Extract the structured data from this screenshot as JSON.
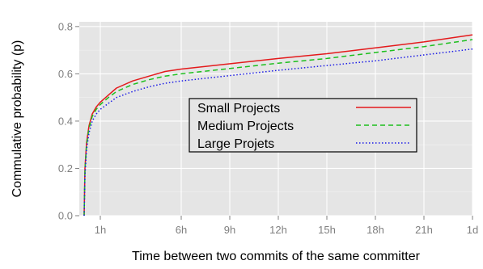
{
  "chart_data": {
    "type": "line",
    "title": "",
    "xlabel": "Time between two commits of the same committer",
    "ylabel": "Commulative probability (p)",
    "xlim_hours": [
      -0.3,
      24
    ],
    "ylim": [
      0,
      0.82
    ],
    "x_ticks": [
      {
        "hours": 1,
        "label": "1h"
      },
      {
        "hours": 6,
        "label": "6h"
      },
      {
        "hours": 9,
        "label": "9h"
      },
      {
        "hours": 12,
        "label": "12h"
      },
      {
        "hours": 15,
        "label": "15h"
      },
      {
        "hours": 18,
        "label": "18h"
      },
      {
        "hours": 21,
        "label": "21h"
      },
      {
        "hours": 24,
        "label": "1d"
      }
    ],
    "y_ticks": [
      {
        "value": 0.0,
        "label": "0.0"
      },
      {
        "value": 0.2,
        "label": "0.2"
      },
      {
        "value": 0.4,
        "label": "0.4"
      },
      {
        "value": 0.6,
        "label": "0.6"
      },
      {
        "value": 0.8,
        "label": "0.8"
      }
    ],
    "grid": true,
    "legend_position": "center",
    "x_hours": [
      0,
      0.05,
      0.15,
      0.3,
      0.5,
      0.75,
      1,
      1.5,
      2,
      3,
      4,
      5,
      6,
      8,
      10,
      12,
      15,
      18,
      21,
      24
    ],
    "series": [
      {
        "name": "Small Projects",
        "color": "#e41a1c",
        "dash": "solid",
        "values": [
          0.0,
          0.2,
          0.31,
          0.38,
          0.43,
          0.46,
          0.48,
          0.51,
          0.54,
          0.57,
          0.59,
          0.61,
          0.62,
          0.635,
          0.65,
          0.665,
          0.685,
          0.71,
          0.735,
          0.765
        ]
      },
      {
        "name": "Medium Projects",
        "color": "#1dbf1d",
        "dash": "dashed",
        "values": [
          0.0,
          0.19,
          0.3,
          0.37,
          0.42,
          0.45,
          0.47,
          0.5,
          0.525,
          0.555,
          0.575,
          0.59,
          0.6,
          0.615,
          0.63,
          0.645,
          0.665,
          0.69,
          0.715,
          0.745
        ]
      },
      {
        "name": "Large Projets",
        "color": "#1a1ae6",
        "dash": "dotted",
        "values": [
          0.0,
          0.17,
          0.28,
          0.35,
          0.4,
          0.43,
          0.45,
          0.475,
          0.5,
          0.525,
          0.545,
          0.56,
          0.57,
          0.585,
          0.6,
          0.615,
          0.635,
          0.655,
          0.68,
          0.705
        ]
      }
    ]
  }
}
